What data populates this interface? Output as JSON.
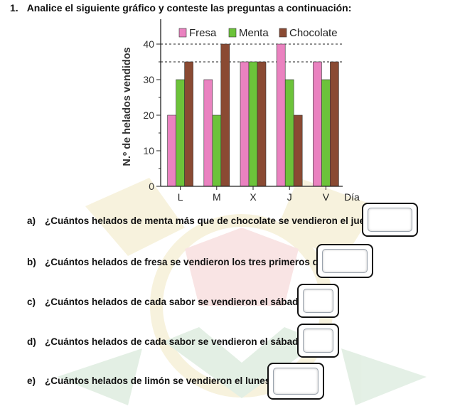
{
  "heading": {
    "number": "1.",
    "text": "Analice el siguiente gráfico y conteste las preguntas a continuación:"
  },
  "colors": {
    "fresa": "#ea82c0",
    "menta": "#6cc33a",
    "chocolate": "#8a4a33"
  },
  "chart_data": {
    "type": "bar",
    "title": "",
    "xlabel": "Día",
    "ylabel": "N.º de helados vendidos",
    "categories": [
      "L",
      "M",
      "X",
      "J",
      "V"
    ],
    "series": [
      {
        "name": "Fresa",
        "values": [
          20,
          30,
          35,
          40,
          35
        ]
      },
      {
        "name": "Menta",
        "values": [
          30,
          20,
          35,
          30,
          30
        ]
      },
      {
        "name": "Chocolate",
        "values": [
          35,
          40,
          35,
          20,
          35
        ]
      }
    ],
    "ylim": [
      0,
      45
    ],
    "yticks": [
      0,
      10,
      20,
      30,
      40
    ],
    "reference_lines": [
      35,
      40
    ],
    "legend_position": "top",
    "grid": false
  },
  "questions": [
    {
      "letter": "a)",
      "text": "¿Cuántos helados de menta más que de chocolate se vendieron el jueves?"
    },
    {
      "letter": "b)",
      "text": "¿Cuántos helados de fresa se vendieron los tres primeros días?"
    },
    {
      "letter": "c)",
      "text": "¿Cuántos helados de cada sabor se vendieron el sábado?"
    },
    {
      "letter": "d)",
      "text": "¿Cuántos helados de cada sabor se vendieron el sábado?"
    },
    {
      "letter": "e)",
      "text": "¿Cuántos helados de limón se vendieron el lunes?"
    }
  ]
}
